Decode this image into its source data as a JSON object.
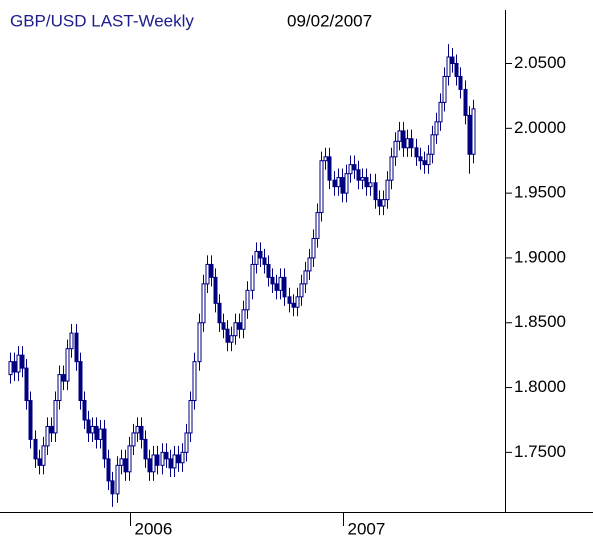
{
  "chart_data": {
    "type": "candlestick",
    "title": "GBP/USD LAST-Weekly",
    "subtitle": "09/02/2007",
    "color": "#000080",
    "xlim": [
      2005.39,
      2007.761
    ],
    "xticks": [
      2006,
      2007
    ],
    "ylim": [
      1.704,
      2.099
    ],
    "yticks": [
      {
        "value": 1.75,
        "label": "1.7500"
      },
      {
        "value": 1.8,
        "label": "1.8000"
      },
      {
        "value": 1.85,
        "label": "1.8500"
      },
      {
        "value": 1.9,
        "label": "1.9000"
      },
      {
        "value": 1.95,
        "label": "1.9500"
      },
      {
        "value": 2.0,
        "label": "2.0000"
      },
      {
        "value": 2.05,
        "label": "2.0500"
      }
    ],
    "x": [
      2005.437,
      2005.456,
      2005.475,
      2005.495,
      2005.514,
      2005.533,
      2005.552,
      2005.572,
      2005.591,
      2005.61,
      2005.629,
      2005.649,
      2005.668,
      2005.687,
      2005.706,
      2005.725,
      2005.745,
      2005.764,
      2005.783,
      2005.802,
      2005.822,
      2005.841,
      2005.86,
      2005.879,
      2005.899,
      2005.918,
      2005.937,
      2005.956,
      2005.975,
      2005.995,
      2006.014,
      2006.033,
      2006.052,
      2006.072,
      2006.091,
      2006.11,
      2006.129,
      2006.149,
      2006.168,
      2006.187,
      2006.206,
      2006.225,
      2006.245,
      2006.264,
      2006.283,
      2006.302,
      2006.322,
      2006.341,
      2006.36,
      2006.379,
      2006.399,
      2006.418,
      2006.437,
      2006.456,
      2006.475,
      2006.495,
      2006.514,
      2006.533,
      2006.552,
      2006.572,
      2006.591,
      2006.61,
      2006.629,
      2006.649,
      2006.668,
      2006.687,
      2006.706,
      2006.725,
      2006.745,
      2006.764,
      2006.783,
      2006.802,
      2006.822,
      2006.841,
      2006.86,
      2006.879,
      2006.899,
      2006.918,
      2006.937,
      2006.956,
      2006.975,
      2006.995,
      2007.014,
      2007.033,
      2007.052,
      2007.072,
      2007.091,
      2007.11,
      2007.129,
      2007.149,
      2007.168,
      2007.187,
      2007.206,
      2007.225,
      2007.245,
      2007.264,
      2007.283,
      2007.302,
      2007.322,
      2007.341,
      2007.36,
      2007.379,
      2007.399,
      2007.418,
      2007.437,
      2007.456,
      2007.475,
      2007.495,
      2007.514,
      2007.533,
      2007.552,
      2007.572,
      2007.591,
      2007.61
    ],
    "open": [
      1.81,
      1.82,
      1.812,
      1.825,
      1.815,
      1.79,
      1.76,
      1.745,
      1.74,
      1.755,
      1.77,
      1.765,
      1.79,
      1.81,
      1.805,
      1.83,
      1.842,
      1.82,
      1.79,
      1.775,
      1.765,
      1.77,
      1.76,
      1.768,
      1.745,
      1.728,
      1.718,
      1.74,
      1.745,
      1.735,
      1.755,
      1.765,
      1.77,
      1.76,
      1.745,
      1.735,
      1.748,
      1.74,
      1.75,
      1.745,
      1.738,
      1.748,
      1.742,
      1.75,
      1.765,
      1.79,
      1.82,
      1.85,
      1.88,
      1.895,
      1.885,
      1.865,
      1.85,
      1.845,
      1.835,
      1.84,
      1.85,
      1.845,
      1.86,
      1.875,
      1.895,
      1.905,
      1.9,
      1.895,
      1.885,
      1.88,
      1.875,
      1.885,
      1.87,
      1.865,
      1.862,
      1.87,
      1.88,
      1.89,
      1.9,
      1.915,
      1.935,
      1.975,
      1.978,
      1.96,
      1.955,
      1.962,
      1.95,
      1.965,
      1.972,
      1.968,
      1.96,
      1.962,
      1.955,
      1.958,
      1.945,
      1.94,
      1.945,
      1.96,
      1.978,
      1.99,
      1.998,
      1.985,
      1.992,
      1.985,
      1.978,
      1.975,
      1.972,
      1.98,
      1.995,
      2.005,
      2.02,
      2.04,
      2.055,
      2.05,
      2.04,
      2.03,
      2.01,
      1.98
    ],
    "high": [
      1.827,
      1.827,
      1.832,
      1.832,
      1.822,
      1.797,
      1.767,
      1.752,
      1.762,
      1.777,
      1.777,
      1.797,
      1.817,
      1.817,
      1.837,
      1.849,
      1.849,
      1.827,
      1.797,
      1.782,
      1.777,
      1.777,
      1.775,
      1.775,
      1.752,
      1.735,
      1.747,
      1.752,
      1.752,
      1.762,
      1.772,
      1.777,
      1.777,
      1.767,
      1.752,
      1.755,
      1.755,
      1.757,
      1.757,
      1.752,
      1.755,
      1.755,
      1.757,
      1.772,
      1.797,
      1.827,
      1.857,
      1.887,
      1.902,
      1.902,
      1.892,
      1.872,
      1.857,
      1.852,
      1.847,
      1.857,
      1.857,
      1.867,
      1.882,
      1.902,
      1.912,
      1.912,
      1.907,
      1.902,
      1.892,
      1.887,
      1.892,
      1.892,
      1.877,
      1.872,
      1.877,
      1.887,
      1.897,
      1.907,
      1.922,
      1.942,
      1.982,
      1.985,
      1.985,
      1.967,
      1.969,
      1.969,
      1.972,
      1.979,
      1.979,
      1.975,
      1.969,
      1.969,
      1.965,
      1.965,
      1.952,
      1.952,
      1.967,
      1.985,
      1.997,
      2.005,
      2.005,
      1.999,
      1.999,
      1.992,
      1.985,
      1.982,
      1.987,
      2.002,
      2.012,
      2.027,
      2.047,
      2.065,
      2.062,
      2.057,
      2.047,
      2.037,
      2.017,
      2.022
    ],
    "low": [
      1.803,
      1.805,
      1.805,
      1.808,
      1.783,
      1.753,
      1.738,
      1.733,
      1.733,
      1.748,
      1.758,
      1.758,
      1.783,
      1.798,
      1.798,
      1.823,
      1.813,
      1.783,
      1.768,
      1.758,
      1.758,
      1.753,
      1.753,
      1.738,
      1.721,
      1.708,
      1.711,
      1.733,
      1.728,
      1.728,
      1.748,
      1.758,
      1.753,
      1.738,
      1.728,
      1.728,
      1.733,
      1.733,
      1.738,
      1.731,
      1.731,
      1.735,
      1.735,
      1.743,
      1.758,
      1.783,
      1.813,
      1.843,
      1.873,
      1.878,
      1.858,
      1.843,
      1.838,
      1.828,
      1.828,
      1.833,
      1.838,
      1.838,
      1.853,
      1.868,
      1.888,
      1.893,
      1.888,
      1.878,
      1.873,
      1.868,
      1.868,
      1.863,
      1.858,
      1.855,
      1.855,
      1.863,
      1.873,
      1.883,
      1.893,
      1.908,
      1.928,
      1.968,
      1.953,
      1.948,
      1.948,
      1.943,
      1.943,
      1.958,
      1.961,
      1.953,
      1.953,
      1.948,
      1.948,
      1.938,
      1.933,
      1.933,
      1.938,
      1.953,
      1.971,
      1.983,
      1.978,
      1.978,
      1.978,
      1.971,
      1.968,
      1.965,
      1.965,
      1.973,
      1.988,
      1.998,
      2.013,
      2.033,
      2.043,
      2.033,
      2.023,
      2.003,
      1.965,
      1.973
    ],
    "close": [
      1.82,
      1.812,
      1.825,
      1.815,
      1.79,
      1.76,
      1.745,
      1.74,
      1.755,
      1.77,
      1.765,
      1.79,
      1.81,
      1.805,
      1.83,
      1.842,
      1.82,
      1.79,
      1.775,
      1.765,
      1.77,
      1.76,
      1.768,
      1.745,
      1.728,
      1.718,
      1.74,
      1.745,
      1.735,
      1.755,
      1.765,
      1.77,
      1.76,
      1.745,
      1.735,
      1.748,
      1.74,
      1.75,
      1.745,
      1.738,
      1.748,
      1.742,
      1.75,
      1.765,
      1.79,
      1.82,
      1.85,
      1.88,
      1.895,
      1.885,
      1.865,
      1.85,
      1.845,
      1.835,
      1.84,
      1.85,
      1.845,
      1.86,
      1.875,
      1.895,
      1.905,
      1.9,
      1.895,
      1.885,
      1.88,
      1.875,
      1.885,
      1.87,
      1.865,
      1.862,
      1.87,
      1.88,
      1.89,
      1.9,
      1.915,
      1.935,
      1.975,
      1.978,
      1.96,
      1.955,
      1.962,
      1.95,
      1.965,
      1.972,
      1.968,
      1.96,
      1.962,
      1.955,
      1.958,
      1.945,
      1.94,
      1.945,
      1.96,
      1.978,
      1.99,
      1.998,
      1.985,
      1.992,
      1.985,
      1.978,
      1.975,
      1.972,
      1.98,
      1.995,
      2.005,
      2.02,
      2.04,
      2.055,
      2.05,
      2.04,
      2.03,
      2.01,
      1.98,
      2.015
    ]
  }
}
